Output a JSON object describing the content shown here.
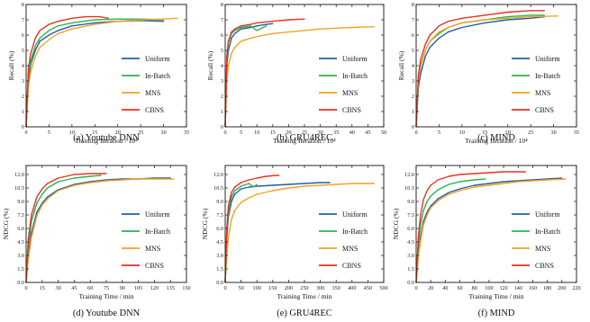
{
  "colors": {
    "Uniform": "#1f5fa6",
    "In-Batch": "#2bb34b",
    "MNS": "#f2a124",
    "CBNS": "#e5321e"
  },
  "chart_data": [
    {
      "type": "line",
      "caption": "(a) Youtube DNN",
      "xlabel": "Training Iteration / 10⁴",
      "ylabel": "Recall (%)",
      "xlim": [
        0,
        35
      ],
      "ylim": [
        0,
        8
      ],
      "xticks": [
        0,
        5,
        10,
        15,
        20,
        25,
        30,
        35
      ],
      "yticks": [
        0,
        1,
        2,
        3,
        4,
        5,
        6,
        7,
        8
      ],
      "grid": false,
      "legend": "bottom-right",
      "series": [
        {
          "name": "Uniform",
          "x": [
            0,
            0.5,
            1,
            2,
            3,
            5,
            7,
            10,
            15,
            20,
            25,
            30
          ],
          "y": [
            0,
            3.0,
            4.1,
            5.0,
            5.6,
            6.0,
            6.3,
            6.6,
            6.8,
            6.9,
            6.95,
            6.9
          ]
        },
        {
          "name": "In-Batch",
          "x": [
            0,
            0.5,
            1,
            2,
            3,
            5,
            7,
            10,
            15,
            20,
            25,
            30
          ],
          "y": [
            0,
            3.3,
            4.3,
            5.3,
            5.8,
            6.3,
            6.6,
            6.8,
            7.0,
            7.05,
            7.05,
            7.0
          ]
        },
        {
          "name": "MNS",
          "x": [
            0,
            0.5,
            1,
            2,
            3,
            5,
            7,
            10,
            15,
            20,
            25,
            30,
            33
          ],
          "y": [
            0,
            2.6,
            3.6,
            4.6,
            5.2,
            5.7,
            6.1,
            6.4,
            6.7,
            6.9,
            7.0,
            7.05,
            7.1
          ]
        },
        {
          "name": "CBNS",
          "x": [
            0,
            0.5,
            1,
            2,
            3,
            5,
            7,
            10,
            13,
            16,
            18
          ],
          "y": [
            0,
            3.8,
            4.8,
            5.8,
            6.3,
            6.7,
            6.9,
            7.1,
            7.2,
            7.2,
            7.1
          ]
        }
      ]
    },
    {
      "type": "line",
      "caption": "(b) GRU4REC",
      "xlabel": "Training Iteration / 10⁴",
      "ylabel": "Recall (%)",
      "xlim": [
        0,
        50
      ],
      "ylim": [
        0,
        8
      ],
      "xticks": [
        0,
        5,
        10,
        15,
        20,
        25,
        30,
        35,
        40,
        45,
        50
      ],
      "yticks": [
        0,
        1,
        2,
        3,
        4,
        5,
        6,
        7,
        8
      ],
      "grid": false,
      "legend": "bottom-right",
      "series": [
        {
          "name": "Uniform",
          "x": [
            0,
            0.5,
            1,
            2,
            3,
            5,
            8,
            10,
            13,
            15
          ],
          "y": [
            0,
            4.0,
            5.0,
            5.8,
            6.1,
            6.4,
            6.5,
            6.6,
            6.7,
            6.75
          ]
        },
        {
          "name": "In-Batch",
          "x": [
            0,
            0.5,
            1,
            2,
            3,
            5,
            8,
            10,
            13
          ],
          "y": [
            0,
            4.4,
            5.5,
            6.1,
            6.3,
            6.5,
            6.6,
            6.3,
            6.6
          ]
        },
        {
          "name": "MNS",
          "x": [
            0,
            0.5,
            1,
            2,
            3,
            5,
            8,
            10,
            15,
            20,
            25,
            30,
            35,
            40,
            47
          ],
          "y": [
            0,
            3.0,
            4.0,
            4.8,
            5.2,
            5.6,
            5.8,
            5.9,
            6.1,
            6.2,
            6.3,
            6.4,
            6.45,
            6.5,
            6.55
          ]
        },
        {
          "name": "CBNS",
          "x": [
            0,
            0.5,
            1,
            2,
            3,
            5,
            8,
            10,
            15,
            20,
            25
          ],
          "y": [
            0,
            4.6,
            5.6,
            6.2,
            6.4,
            6.6,
            6.7,
            6.8,
            6.9,
            7.0,
            7.05
          ]
        }
      ]
    },
    {
      "type": "line",
      "caption": "(c) MIND",
      "xlabel": "Training Iteration / 10⁴",
      "ylabel": "Recall (%)",
      "xlim": [
        0,
        35
      ],
      "ylim": [
        0,
        8
      ],
      "xticks": [
        0,
        5,
        10,
        15,
        20,
        25,
        30,
        35
      ],
      "yticks": [
        0,
        1,
        2,
        3,
        4,
        5,
        6,
        7,
        8
      ],
      "grid": false,
      "legend": "bottom-right",
      "series": [
        {
          "name": "Uniform",
          "x": [
            0,
            0.5,
            1,
            2,
            3,
            5,
            7,
            10,
            15,
            20,
            25,
            28
          ],
          "y": [
            0,
            2.6,
            3.5,
            4.6,
            5.2,
            5.8,
            6.2,
            6.5,
            6.8,
            7.0,
            7.1,
            7.2
          ]
        },
        {
          "name": "In-Batch",
          "x": [
            0,
            0.5,
            1,
            2,
            3,
            5,
            7,
            10,
            15,
            20,
            25,
            28
          ],
          "y": [
            0,
            3.0,
            4.0,
            5.0,
            5.6,
            6.1,
            6.5,
            6.8,
            7.0,
            7.2,
            7.3,
            7.3
          ]
        },
        {
          "name": "MNS",
          "x": [
            0,
            0.5,
            1,
            2,
            3,
            5,
            7,
            10,
            15,
            20,
            25,
            31
          ],
          "y": [
            0,
            3.0,
            4.0,
            5.0,
            5.6,
            6.2,
            6.5,
            6.8,
            7.0,
            7.1,
            7.2,
            7.25
          ]
        },
        {
          "name": "CBNS",
          "x": [
            0,
            0.5,
            1,
            2,
            3,
            5,
            7,
            10,
            15,
            20,
            25,
            28
          ],
          "y": [
            0,
            3.4,
            4.4,
            5.4,
            6.0,
            6.6,
            6.9,
            7.1,
            7.3,
            7.5,
            7.6,
            7.6
          ]
        }
      ]
    },
    {
      "type": "line",
      "caption": "(d) Youtube DNN",
      "xlabel": "Training Time / min",
      "ylabel": "NDCG (%)",
      "xlim": [
        0,
        150
      ],
      "ylim": [
        0,
        13
      ],
      "xticks": [
        0,
        15,
        30,
        45,
        60,
        75,
        90,
        105,
        120,
        135,
        150
      ],
      "yticks": [
        0.0,
        1.5,
        3.0,
        4.5,
        6.0,
        7.5,
        9.0,
        10.5,
        12.0
      ],
      "grid": false,
      "legend": "bottom-right",
      "series": [
        {
          "name": "Uniform",
          "x": [
            0,
            2,
            5,
            10,
            15,
            20,
            30,
            45,
            60,
            75,
            90,
            105,
            120,
            135
          ],
          "y": [
            0,
            3.0,
            5.5,
            7.8,
            8.8,
            9.5,
            10.3,
            10.9,
            11.2,
            11.4,
            11.5,
            11.5,
            11.6,
            11.6
          ]
        },
        {
          "name": "In-Batch",
          "x": [
            0,
            2,
            5,
            10,
            15,
            20,
            30,
            45,
            60,
            70
          ],
          "y": [
            0,
            4.0,
            6.8,
            8.8,
            9.8,
            10.5,
            11.2,
            11.6,
            11.8,
            11.9
          ]
        },
        {
          "name": "MNS",
          "x": [
            0,
            2,
            5,
            10,
            15,
            20,
            30,
            45,
            60,
            75,
            90,
            105,
            120,
            138
          ],
          "y": [
            0,
            2.6,
            5.0,
            7.4,
            8.6,
            9.3,
            10.2,
            10.8,
            11.1,
            11.3,
            11.4,
            11.5,
            11.5,
            11.5
          ]
        },
        {
          "name": "CBNS",
          "x": [
            0,
            2,
            5,
            10,
            15,
            20,
            30,
            45,
            60,
            75
          ],
          "y": [
            0,
            4.8,
            7.5,
            9.5,
            10.4,
            11.0,
            11.6,
            12.0,
            12.1,
            12.1
          ]
        }
      ]
    },
    {
      "type": "line",
      "caption": "(e) GRU4REC",
      "xlabel": "Training Time / min",
      "ylabel": "NDCG (%)",
      "xlim": [
        0,
        500
      ],
      "ylim": [
        0,
        13
      ],
      "xticks": [
        0,
        50,
        100,
        150,
        200,
        250,
        300,
        350,
        400,
        450,
        500
      ],
      "yticks": [
        0.0,
        1.5,
        3.0,
        4.5,
        6.0,
        7.5,
        9.0,
        10.5,
        12.0
      ],
      "grid": false,
      "legend": "bottom-right",
      "series": [
        {
          "name": "Uniform",
          "x": [
            0,
            5,
            10,
            20,
            30,
            50,
            75,
            100,
            150,
            200,
            250,
            300,
            330
          ],
          "y": [
            0,
            5.0,
            7.3,
            9.0,
            9.8,
            10.4,
            10.6,
            10.7,
            10.8,
            10.9,
            11.0,
            11.1,
            11.1
          ]
        },
        {
          "name": "In-Batch",
          "x": [
            0,
            5,
            10,
            20,
            30,
            50,
            75,
            90,
            100
          ],
          "y": [
            0,
            5.5,
            7.8,
            9.5,
            10.2,
            10.7,
            11.0,
            10.6,
            10.9
          ]
        },
        {
          "name": "MNS",
          "x": [
            0,
            5,
            10,
            20,
            30,
            50,
            75,
            100,
            150,
            200,
            250,
            300,
            350,
            400,
            450,
            470
          ],
          "y": [
            0,
            3.0,
            5.0,
            7.0,
            8.0,
            8.9,
            9.4,
            9.8,
            10.2,
            10.5,
            10.7,
            10.8,
            10.9,
            11.0,
            11.0,
            11.0
          ]
        },
        {
          "name": "CBNS",
          "x": [
            0,
            5,
            10,
            20,
            30,
            50,
            75,
            100,
            130,
            160,
            170
          ],
          "y": [
            0,
            6.0,
            8.5,
            10.0,
            10.6,
            11.1,
            11.4,
            11.6,
            11.8,
            11.9,
            11.9
          ]
        }
      ]
    },
    {
      "type": "line",
      "caption": "(f) MIND",
      "xlabel": "Training Time / min",
      "ylabel": "NDCG (%)",
      "xlim": [
        0,
        220
      ],
      "ylim": [
        0,
        13
      ],
      "xticks": [
        0,
        20,
        40,
        60,
        80,
        100,
        120,
        140,
        160,
        180,
        200,
        220
      ],
      "yticks": [
        0.0,
        1.5,
        3.0,
        4.5,
        6.0,
        7.5,
        9.0,
        10.5,
        12.0
      ],
      "grid": false,
      "legend": "bottom-right",
      "series": [
        {
          "name": "Uniform",
          "x": [
            0,
            3,
            6,
            10,
            15,
            20,
            30,
            45,
            60,
            80,
            100,
            120,
            140,
            160,
            180,
            200
          ],
          "y": [
            0,
            3.0,
            5.0,
            6.8,
            7.8,
            8.5,
            9.3,
            10.0,
            10.4,
            10.8,
            11.0,
            11.2,
            11.3,
            11.4,
            11.5,
            11.6
          ]
        },
        {
          "name": "In-Batch",
          "x": [
            0,
            3,
            6,
            10,
            15,
            20,
            30,
            45,
            60,
            80,
            95
          ],
          "y": [
            0,
            4.2,
            6.4,
            8.0,
            9.0,
            9.6,
            10.3,
            10.9,
            11.2,
            11.4,
            11.5
          ]
        },
        {
          "name": "MNS",
          "x": [
            0,
            3,
            6,
            10,
            15,
            20,
            30,
            45,
            60,
            80,
            100,
            120,
            140,
            160,
            180,
            205
          ],
          "y": [
            0,
            2.8,
            4.6,
            6.4,
            7.5,
            8.3,
            9.1,
            9.8,
            10.2,
            10.6,
            10.8,
            11.0,
            11.2,
            11.3,
            11.4,
            11.5
          ]
        },
        {
          "name": "CBNS",
          "x": [
            0,
            3,
            6,
            10,
            15,
            20,
            30,
            45,
            60,
            80,
            100,
            120,
            140,
            150
          ],
          "y": [
            0,
            5.0,
            7.5,
            9.2,
            10.2,
            10.8,
            11.4,
            11.8,
            12.0,
            12.1,
            12.2,
            12.3,
            12.3,
            12.3
          ]
        }
      ]
    }
  ]
}
